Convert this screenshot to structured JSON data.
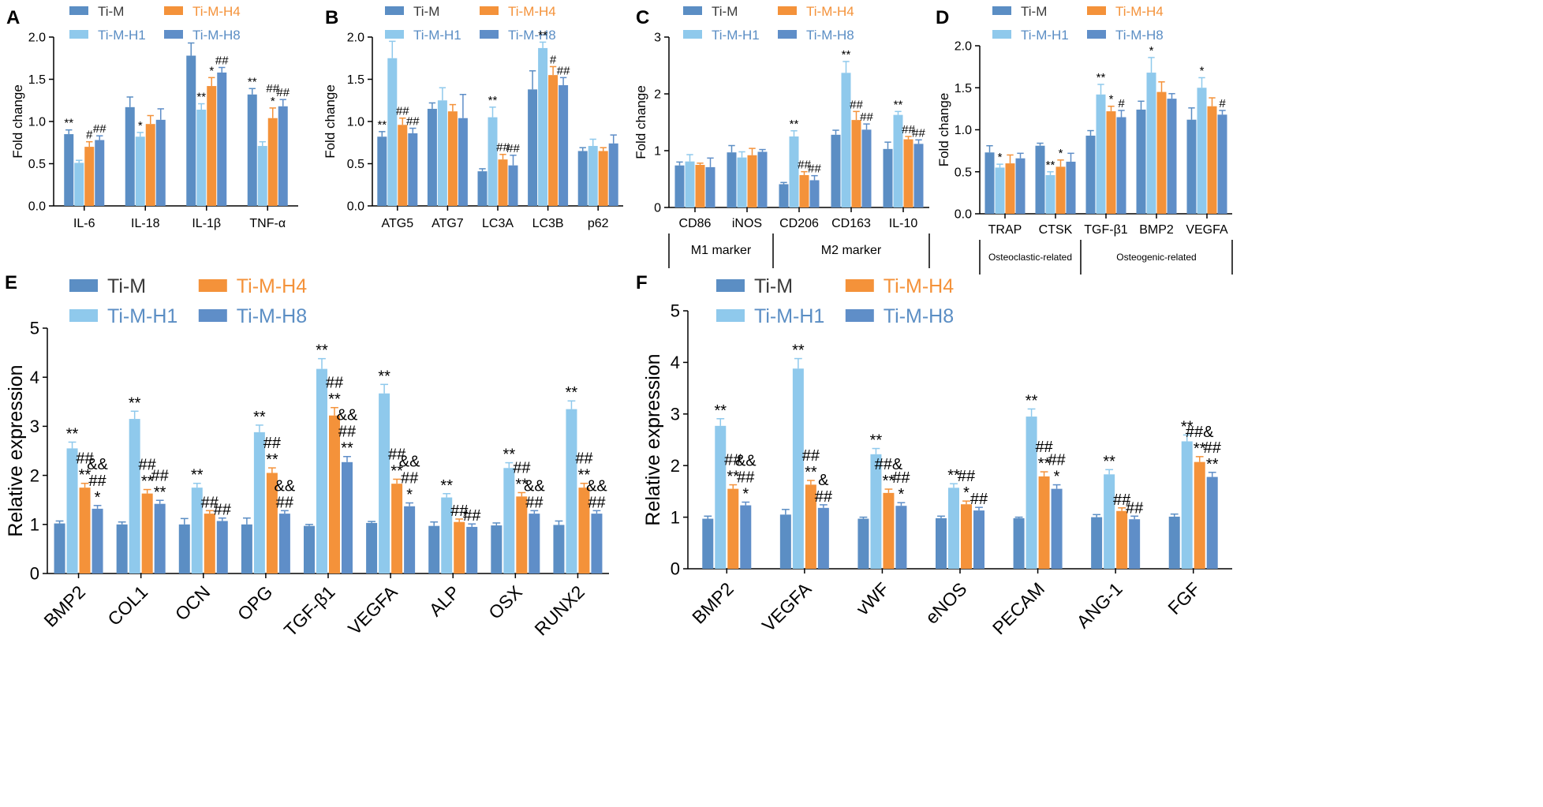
{
  "colors": {
    "Ti-M": "#5b8ec4",
    "Ti-M-H1": "#8fc9ec",
    "Ti-M-H4": "#f4923a",
    "Ti-M-H8": "#5f8ec8",
    "legend_text_dark": "#3a3a3a",
    "legend_text_blue": "#5b8ec4",
    "legend_text_orange": "#f4923a"
  },
  "legend": [
    "Ti-M",
    "Ti-M-H1",
    "Ti-M-H4",
    "Ti-M-H8"
  ],
  "chart_data": [
    {
      "panel": "A",
      "type": "bar",
      "ylabel": "Fold change",
      "ylim": [
        0,
        2.0
      ],
      "yticks": [
        "0.0",
        "0.5",
        "1.0",
        "1.5",
        "2.0"
      ],
      "categories": [
        "IL-6",
        "IL-18",
        "IL-1β",
        "TNF-α"
      ],
      "series": [
        {
          "name": "Ti-M",
          "values": [
            0.85,
            1.17,
            1.78,
            1.32
          ],
          "errors": [
            0.05,
            0.12,
            0.15,
            0.07
          ]
        },
        {
          "name": "Ti-M-H1",
          "values": [
            0.51,
            0.82,
            1.14,
            0.71
          ],
          "errors": [
            0.03,
            0.05,
            0.07,
            0.05
          ]
        },
        {
          "name": "Ti-M-H4",
          "values": [
            0.7,
            0.97,
            1.42,
            1.04
          ],
          "errors": [
            0.06,
            0.1,
            0.1,
            0.12
          ]
        },
        {
          "name": "Ti-M-H8",
          "values": [
            0.78,
            1.02,
            1.58,
            1.18
          ],
          "errors": [
            0.05,
            0.13,
            0.06,
            0.08
          ]
        }
      ],
      "annotations": [
        [
          "**",
          "",
          "",
          ""
        ],
        [
          "",
          "*",
          "",
          ""
        ],
        [
          "",
          "**",
          "*",
          ""
        ],
        [
          "**",
          "",
          "*",
          ""
        ]
      ],
      "annotations_extra": [
        [
          "",
          "",
          "#",
          "##"
        ],
        [
          "",
          "",
          "",
          ""
        ],
        [
          "",
          "",
          "",
          "##"
        ],
        [
          "",
          "",
          "##",
          "##"
        ]
      ]
    },
    {
      "panel": "B",
      "type": "bar",
      "ylabel": "Fold change",
      "ylim": [
        0,
        2.0
      ],
      "yticks": [
        "0.0",
        "0.5",
        "1.0",
        "1.5",
        "2.0"
      ],
      "categories": [
        "ATG5",
        "ATG7",
        "LC3A",
        "LC3B",
        "p62"
      ],
      "series": [
        {
          "name": "Ti-M",
          "values": [
            0.82,
            1.15,
            0.41,
            1.38,
            0.65
          ],
          "errors": [
            0.06,
            0.07,
            0.03,
            0.22,
            0.04
          ]
        },
        {
          "name": "Ti-M-H1",
          "values": [
            1.75,
            1.25,
            1.05,
            1.87,
            0.71
          ],
          "errors": [
            0.2,
            0.15,
            0.12,
            0.07,
            0.08
          ]
        },
        {
          "name": "Ti-M-H4",
          "values": [
            0.96,
            1.12,
            0.55,
            1.55,
            0.65
          ],
          "errors": [
            0.08,
            0.08,
            0.06,
            0.1,
            0.04
          ]
        },
        {
          "name": "Ti-M-H8",
          "values": [
            0.86,
            1.04,
            0.48,
            1.43,
            0.74
          ],
          "errors": [
            0.06,
            0.28,
            0.12,
            0.09,
            0.1
          ]
        }
      ],
      "annotations": [
        [
          "**",
          "",
          "",
          ""
        ],
        [
          "",
          "",
          "",
          ""
        ],
        [
          "",
          "**",
          "",
          ""
        ],
        [
          "",
          "**",
          "",
          ""
        ],
        [
          "",
          "",
          "",
          ""
        ]
      ],
      "annotations_extra": [
        [
          "",
          "",
          "##",
          "##"
        ],
        [
          "",
          "",
          "",
          ""
        ],
        [
          "",
          "",
          "##",
          "##"
        ],
        [
          "",
          "",
          "#",
          "##"
        ],
        [
          "",
          "",
          "",
          ""
        ]
      ]
    },
    {
      "panel": "C",
      "type": "bar",
      "ylabel": "Fold change",
      "ylim": [
        0,
        3
      ],
      "yticks": [
        "0",
        "1",
        "2",
        "3"
      ],
      "categories": [
        "CD86",
        "iNOS",
        "CD206",
        "CD163",
        "IL-10"
      ],
      "groups": [
        "M1 marker",
        "M2 marker"
      ],
      "series": [
        {
          "name": "Ti-M",
          "values": [
            0.74,
            0.97,
            0.41,
            1.28,
            1.03
          ],
          "errors": [
            0.06,
            0.12,
            0.03,
            0.08,
            0.12
          ]
        },
        {
          "name": "Ti-M-H1",
          "values": [
            0.81,
            0.88,
            1.25,
            2.37,
            1.63
          ],
          "errors": [
            0.12,
            0.1,
            0.1,
            0.2,
            0.06
          ]
        },
        {
          "name": "Ti-M-H4",
          "values": [
            0.75,
            0.92,
            0.57,
            1.54,
            1.2
          ],
          "errors": [
            0.03,
            0.12,
            0.06,
            0.15,
            0.05
          ]
        },
        {
          "name": "Ti-M-H8",
          "values": [
            0.71,
            0.98,
            0.48,
            1.37,
            1.12
          ],
          "errors": [
            0.16,
            0.04,
            0.08,
            0.1,
            0.07
          ]
        }
      ],
      "annotations": [
        [
          "",
          "",
          "",
          ""
        ],
        [
          "",
          "",
          "",
          ""
        ],
        [
          "",
          "**",
          "",
          ""
        ],
        [
          "",
          "**",
          "",
          ""
        ],
        [
          "",
          "**",
          "",
          ""
        ]
      ],
      "annotations_extra": [
        [
          "",
          "",
          "",
          ""
        ],
        [
          "",
          "",
          "",
          ""
        ],
        [
          "",
          "",
          "##",
          "##"
        ],
        [
          "",
          "",
          "##",
          "##"
        ],
        [
          "",
          "",
          "##",
          "##"
        ]
      ]
    },
    {
      "panel": "D",
      "type": "bar",
      "ylabel": "Fold change",
      "ylim": [
        0,
        2.0
      ],
      "yticks": [
        "0.0",
        "0.5",
        "1.0",
        "1.5",
        "2.0"
      ],
      "categories": [
        "TRAP",
        "CTSK",
        "TGF-β1",
        "BMP2",
        "VEGFA"
      ],
      "groups": [
        "Osteoclastic-related",
        "Osteogenic-related"
      ],
      "series": [
        {
          "name": "Ti-M",
          "values": [
            0.73,
            0.81,
            0.93,
            1.24,
            1.12
          ],
          "errors": [
            0.08,
            0.03,
            0.06,
            0.1,
            0.14
          ]
        },
        {
          "name": "Ti-M-H1",
          "values": [
            0.55,
            0.46,
            1.42,
            1.68,
            1.5
          ],
          "errors": [
            0.04,
            0.04,
            0.12,
            0.18,
            0.12
          ]
        },
        {
          "name": "Ti-M-H4",
          "values": [
            0.6,
            0.56,
            1.22,
            1.45,
            1.28
          ],
          "errors": [
            0.1,
            0.08,
            0.06,
            0.12,
            0.1
          ]
        },
        {
          "name": "Ti-M-H8",
          "values": [
            0.66,
            0.62,
            1.15,
            1.37,
            1.18
          ],
          "errors": [
            0.06,
            0.1,
            0.08,
            0.06,
            0.05
          ]
        }
      ],
      "annotations": [
        [
          "",
          "*",
          "",
          ""
        ],
        [
          "",
          "**",
          "*",
          ""
        ],
        [
          "",
          "**",
          "*",
          ""
        ],
        [
          "",
          "*",
          "",
          ""
        ],
        [
          "",
          "*",
          "",
          ""
        ]
      ],
      "annotations_extra": [
        [
          "",
          "",
          "",
          ""
        ],
        [
          "",
          "",
          "",
          ""
        ],
        [
          "",
          "",
          "",
          "#"
        ],
        [
          "",
          "",
          "",
          ""
        ],
        [
          "",
          "",
          "",
          "#"
        ]
      ]
    },
    {
      "panel": "E",
      "type": "bar",
      "ylabel": "Relative expression",
      "ylim": [
        0,
        5
      ],
      "yticks": [
        "0",
        "1",
        "2",
        "3",
        "4",
        "5"
      ],
      "categories": [
        "BMP2",
        "COL1",
        "OCN",
        "OPG",
        "TGF-β1",
        "VEGFA",
        "ALP",
        "OSX",
        "RUNX2"
      ],
      "series": [
        {
          "name": "Ti-M",
          "values": [
            1.02,
            1.0,
            1.0,
            1.0,
            0.97,
            1.03,
            0.97,
            0.98,
            0.99
          ],
          "errors": [
            0.05,
            0.05,
            0.12,
            0.13,
            0.03,
            0.03,
            0.08,
            0.05,
            0.08
          ]
        },
        {
          "name": "Ti-M-H1",
          "values": [
            2.55,
            3.15,
            1.75,
            2.88,
            4.17,
            3.67,
            1.55,
            2.15,
            3.35
          ]
        },
        {
          "name": "Ti-M-H4",
          "values": [
            1.75,
            1.63,
            1.22,
            2.05,
            3.22,
            1.83,
            1.05,
            1.57,
            1.75
          ]
        },
        {
          "name": "Ti-M-H8",
          "values": [
            1.32,
            1.42,
            1.07,
            1.22,
            2.27,
            1.37,
            0.95,
            1.22,
            1.22
          ]
        }
      ],
      "annotations": [
        [
          "",
          "**",
          "##\n**",
          "&&\n##\n*"
        ],
        [
          "",
          "**",
          "##\n**",
          "##\n**"
        ],
        [
          "",
          "**",
          "##",
          "##"
        ],
        [
          "",
          "**",
          "##\n**",
          "&&\n##"
        ],
        [
          "",
          "**",
          "##\n**",
          "&&\n##\n**"
        ],
        [
          "",
          "**",
          "##\n**",
          "&&\n##\n*"
        ],
        [
          "",
          "**",
          "##",
          "##"
        ],
        [
          "",
          "**",
          "##\n**",
          "&&\n##"
        ],
        [
          "",
          "**",
          "##\n**",
          "&&\n##"
        ]
      ]
    },
    {
      "panel": "F",
      "type": "bar",
      "ylabel": "Relative expression",
      "ylim": [
        0,
        5
      ],
      "yticks": [
        "0",
        "1",
        "2",
        "3",
        "4",
        "5"
      ],
      "categories": [
        "BMP2",
        "VEGFA",
        "vWF",
        "eNOS",
        "PECAM",
        "ANG-1",
        "FGF"
      ],
      "series": [
        {
          "name": "Ti-M",
          "values": [
            0.97,
            1.05,
            0.97,
            0.98,
            0.98,
            1.0,
            1.01
          ],
          "errors": [
            0.05,
            0.1,
            0.03,
            0.04,
            0.02,
            0.05,
            0.05
          ]
        },
        {
          "name": "Ti-M-H1",
          "values": [
            2.77,
            3.88,
            2.22,
            1.57,
            2.95,
            1.83,
            2.47
          ]
        },
        {
          "name": "Ti-M-H4",
          "values": [
            1.55,
            1.63,
            1.47,
            1.25,
            1.79,
            1.12,
            2.07
          ]
        },
        {
          "name": "Ti-M-H8",
          "values": [
            1.23,
            1.18,
            1.22,
            1.13,
            1.55,
            0.96,
            1.78
          ]
        }
      ],
      "annotations": [
        [
          "",
          "**",
          "##\n**",
          "&&\n##\n*"
        ],
        [
          "",
          "**",
          "##\n**",
          "&\n##"
        ],
        [
          "",
          "**",
          "##&\n**",
          "##\n*"
        ],
        [
          "",
          "**",
          "##\n*",
          "##"
        ],
        [
          "",
          "**",
          "##\n**",
          "##\n*"
        ],
        [
          "",
          "**",
          "##",
          "##"
        ],
        [
          "",
          "**",
          "##&\n**",
          "##\n**"
        ]
      ]
    }
  ]
}
